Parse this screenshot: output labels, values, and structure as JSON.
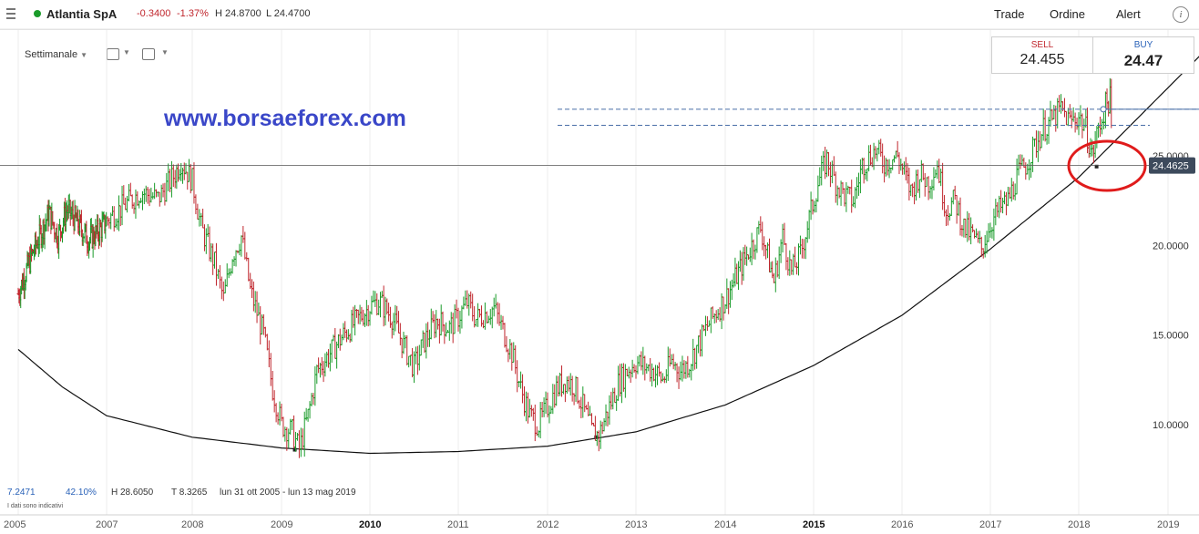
{
  "header": {
    "instrument": "Atlantia SpA",
    "change": "-0.3400",
    "change_pct": "-1.37%",
    "high": "H 24.8700",
    "low": "L 24.4700",
    "nav": [
      "Trade",
      "Ordine",
      "Alert"
    ],
    "status_color": "#1a9b2a",
    "info_icon": "info-icon"
  },
  "toolbar": {
    "timeframe": "Settimanale",
    "tools": [
      "chart-type-icon",
      "indicator-icon"
    ]
  },
  "quote": {
    "sell_label": "SELL",
    "sell_price": "24.455",
    "buy_label": "BUY",
    "buy_price": "24.47",
    "sell_color": "#c0262d",
    "buy_color": "#2a62b8"
  },
  "watermark": "www.borsaeforex.com",
  "footer": {
    "last": "7.2471",
    "pct": "42.10%",
    "hi": "H 28.6050",
    "lo": "T 8.3265",
    "range": "lun 31 ott 2005 - lun 13 mag 2019",
    "disclaimer": "I dati sono indicativi"
  },
  "chart_data": {
    "type": "candlestick",
    "timeframe": "weekly",
    "x_range": [
      2005.0,
      2019.2
    ],
    "ylim": [
      7.5,
      29.5
    ],
    "y_ticks": [
      "10.0000",
      "15.0000",
      "20.0000",
      "25.0000"
    ],
    "x_ticks": [
      "2005",
      "2007",
      "2008",
      "2009",
      "2010",
      "2011",
      "2012",
      "2013",
      "2014",
      "2015",
      "2016",
      "2017",
      "2018",
      "2019"
    ],
    "current_price": "24.4625",
    "up_color": "#1a9b2a",
    "down_color": "#c0262d",
    "series": [
      {
        "points": [
          [
            2005.0,
            17.3
          ],
          [
            2005.3,
            19.4
          ],
          [
            2005.5,
            20.6
          ],
          [
            2005.7,
            21.8
          ],
          [
            2005.9,
            20.5
          ],
          [
            2006.1,
            22.0
          ],
          [
            2006.3,
            21.4
          ],
          [
            2006.6,
            20.3
          ],
          [
            2006.9,
            21.0
          ],
          [
            2007.2,
            22.2
          ],
          [
            2007.4,
            23.0
          ],
          [
            2007.6,
            22.6
          ],
          [
            2007.8,
            24.0
          ],
          [
            2007.87,
            24.7
          ],
          [
            2008.0,
            23.6
          ],
          [
            2008.1,
            21.0
          ],
          [
            2008.25,
            19.0
          ],
          [
            2008.35,
            17.0
          ],
          [
            2008.45,
            19.5
          ],
          [
            2008.55,
            20.5
          ],
          [
            2008.65,
            17.5
          ],
          [
            2008.8,
            15.0
          ],
          [
            2008.9,
            12.0
          ],
          [
            2009.0,
            10.0
          ],
          [
            2009.12,
            9.6
          ],
          [
            2009.2,
            8.6
          ],
          [
            2009.3,
            10.5
          ],
          [
            2009.4,
            13.0
          ],
          [
            2009.55,
            14.0
          ],
          [
            2009.7,
            15.0
          ],
          [
            2009.85,
            15.8
          ],
          [
            2010.0,
            16.6
          ],
          [
            2010.1,
            16.9
          ],
          [
            2010.25,
            16.0
          ],
          [
            2010.4,
            14.2
          ],
          [
            2010.5,
            13.2
          ],
          [
            2010.6,
            14.5
          ],
          [
            2010.75,
            15.8
          ],
          [
            2010.9,
            15.4
          ],
          [
            2011.0,
            16.0
          ],
          [
            2011.1,
            16.8
          ],
          [
            2011.2,
            15.9
          ],
          [
            2011.3,
            16.2
          ],
          [
            2011.4,
            16.5
          ],
          [
            2011.48,
            15.5
          ],
          [
            2011.6,
            14.0
          ],
          [
            2011.7,
            12.0
          ],
          [
            2011.8,
            10.5
          ],
          [
            2011.9,
            10.0
          ],
          [
            2012.0,
            11.0
          ],
          [
            2012.1,
            12.0
          ],
          [
            2012.2,
            12.5
          ],
          [
            2012.3,
            12.2
          ],
          [
            2012.4,
            11.0
          ],
          [
            2012.5,
            9.6
          ],
          [
            2012.58,
            9.4
          ],
          [
            2012.7,
            11.0
          ],
          [
            2012.8,
            12.3
          ],
          [
            2012.9,
            13.0
          ],
          [
            2013.0,
            13.5
          ],
          [
            2013.2,
            13.0
          ],
          [
            2013.3,
            12.5
          ],
          [
            2013.4,
            13.5
          ],
          [
            2013.5,
            13.0
          ],
          [
            2013.6,
            13.5
          ],
          [
            2013.7,
            14.5
          ],
          [
            2013.8,
            15.5
          ],
          [
            2013.9,
            16.3
          ],
          [
            2014.0,
            17.0
          ],
          [
            2014.15,
            18.5
          ],
          [
            2014.3,
            20.0
          ],
          [
            2014.4,
            21.0
          ],
          [
            2014.5,
            19.0
          ],
          [
            2014.55,
            18.0
          ],
          [
            2014.65,
            20.5
          ],
          [
            2014.75,
            18.5
          ],
          [
            2014.85,
            19.5
          ],
          [
            2014.95,
            21.5
          ],
          [
            2015.05,
            23.5
          ],
          [
            2015.15,
            24.8
          ],
          [
            2015.25,
            23.5
          ],
          [
            2015.35,
            22.8
          ],
          [
            2015.45,
            22.5
          ],
          [
            2015.55,
            24.5
          ],
          [
            2015.7,
            25.3
          ],
          [
            2015.8,
            24.6
          ],
          [
            2015.95,
            25.0
          ],
          [
            2016.1,
            23.0
          ],
          [
            2016.2,
            24.0
          ],
          [
            2016.3,
            23.5
          ],
          [
            2016.4,
            24.5
          ],
          [
            2016.5,
            22.0
          ],
          [
            2016.6,
            22.5
          ],
          [
            2016.7,
            21.0
          ],
          [
            2016.8,
            20.5
          ],
          [
            2016.9,
            19.8
          ],
          [
            2017.0,
            21.2
          ],
          [
            2017.1,
            22.0
          ],
          [
            2017.2,
            22.5
          ],
          [
            2017.3,
            23.8
          ],
          [
            2017.4,
            24.5
          ],
          [
            2017.5,
            25.5
          ],
          [
            2017.6,
            26.5
          ],
          [
            2017.7,
            27.0
          ],
          [
            2017.8,
            27.6
          ],
          [
            2017.9,
            26.9
          ],
          [
            2018.0,
            27.2
          ],
          [
            2018.08,
            26.5
          ],
          [
            2018.15,
            25.0
          ],
          [
            2018.22,
            26.5
          ],
          [
            2018.3,
            27.8
          ],
          [
            2018.35,
            28.2
          ],
          [
            2018.38,
            24.6
          ]
        ]
      }
    ],
    "annotations": {
      "resistance_levels": [
        27.6,
        26.7
      ],
      "horizontal_line": 24.46,
      "trendline_curve": [
        [
          2005.0,
          14.2
        ],
        [
          2006.0,
          12.1
        ],
        [
          2007.0,
          10.5
        ],
        [
          2008.0,
          9.3
        ],
        [
          2009.0,
          8.7
        ],
        [
          2010.0,
          8.4
        ],
        [
          2011.0,
          8.5
        ],
        [
          2012.0,
          8.8
        ],
        [
          2013.0,
          9.6
        ],
        [
          2014.0,
          11.1
        ],
        [
          2015.0,
          13.3
        ],
        [
          2016.0,
          16.1
        ],
        [
          2017.0,
          19.8
        ],
        [
          2018.0,
          23.8
        ],
        [
          2019.0,
          28.8
        ]
      ],
      "highlight_circle": {
        "x": 2018.47,
        "y": 24.6
      }
    }
  }
}
